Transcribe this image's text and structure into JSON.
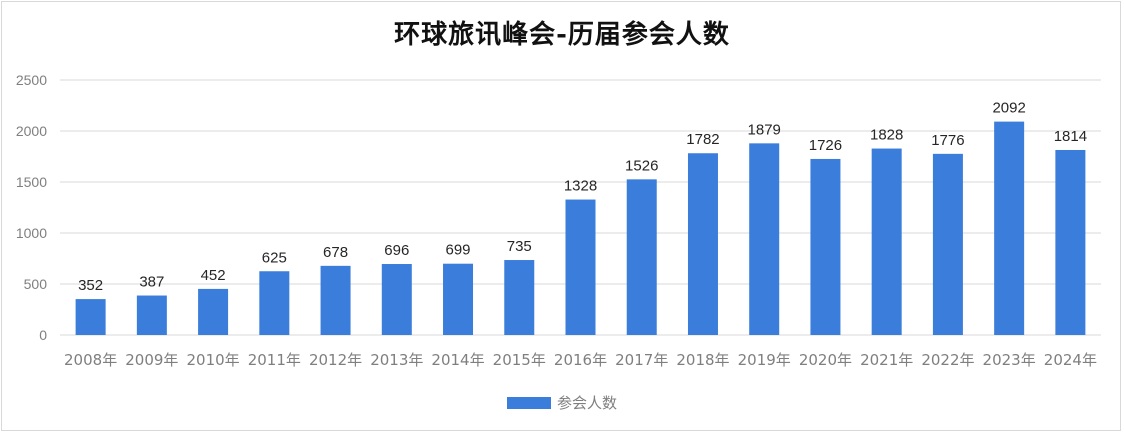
{
  "chart_data": {
    "type": "bar",
    "title": "环球旅讯峰会-历届参会人数",
    "categories": [
      "2008年",
      "2009年",
      "2010年",
      "2011年",
      "2012年",
      "2013年",
      "2014年",
      "2015年",
      "2016年",
      "2017年",
      "2018年",
      "2019年",
      "2020年",
      "2021年",
      "2022年",
      "2023年",
      "2024年"
    ],
    "series": [
      {
        "name": "参会人数",
        "values": [
          352,
          387,
          452,
          625,
          678,
          696,
          699,
          735,
          1328,
          1526,
          1782,
          1879,
          1726,
          1828,
          1776,
          2092,
          1814
        ]
      }
    ],
    "ylim": [
      0,
      2500
    ],
    "yticks": [
      "0",
      "500",
      "1000",
      "1500",
      "2000",
      "2500"
    ],
    "xlabel": "",
    "ylabel": "",
    "grid": true,
    "legend": "bottom",
    "colors": {
      "bar": "#3a7ddb",
      "grid": "#d9d9d9",
      "axis_text": "#7f7f7f"
    }
  }
}
